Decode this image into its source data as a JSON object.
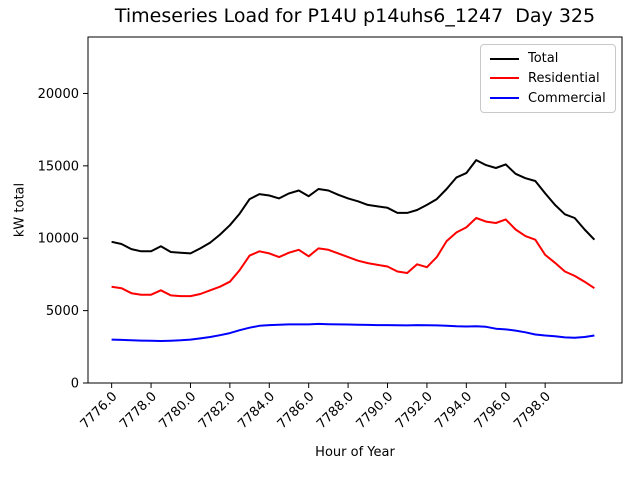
{
  "chart_data": {
    "type": "line",
    "title": "Timeseries Load for P14U p14uhs6_1247  Day 325",
    "xlabel": "Hour of Year",
    "ylabel": "kW total",
    "grid": false,
    "legend_position": "upper right",
    "xlim": [
      7774.8,
      7801.9
    ],
    "ylim": [
      0,
      23900
    ],
    "xticks": [
      7776,
      7778,
      7780,
      7782,
      7784,
      7786,
      7788,
      7790,
      7792,
      7794,
      7796,
      7798
    ],
    "xtick_labels": [
      "7776.0",
      "7778.0",
      "7780.0",
      "7782.0",
      "7784.0",
      "7786.0",
      "7788.0",
      "7790.0",
      "7792.0",
      "7794.0",
      "7796.0",
      "7798.0"
    ],
    "yticks": [
      0,
      5000,
      10000,
      15000,
      20000
    ],
    "ytick_labels": [
      "0",
      "5000",
      "10000",
      "15000",
      "20000"
    ],
    "x": [
      7776.0,
      7776.5,
      7777.0,
      7777.5,
      7778.0,
      7778.5,
      7779.0,
      7779.5,
      7780.0,
      7780.5,
      7781.0,
      7781.5,
      7782.0,
      7782.5,
      7783.0,
      7783.5,
      7784.0,
      7784.5,
      7785.0,
      7785.5,
      7786.0,
      7786.5,
      7787.0,
      7787.5,
      7788.0,
      7788.5,
      7789.0,
      7789.5,
      7790.0,
      7790.5,
      7791.0,
      7791.5,
      7792.0,
      7792.5,
      7793.0,
      7793.5,
      7794.0,
      7794.5,
      7795.0,
      7795.5,
      7796.0,
      7796.5,
      7797.0,
      7797.5,
      7798.0,
      7798.5,
      7799.0,
      7799.5,
      7800.0,
      7800.5
    ],
    "series": [
      {
        "name": "Total",
        "color": "#000000",
        "values": [
          9750,
          9600,
          9250,
          9100,
          9100,
          9450,
          9050,
          9000,
          8950,
          9300,
          9700,
          10250,
          10900,
          11700,
          12700,
          13050,
          12950,
          12750,
          13100,
          13300,
          12900,
          13400,
          13300,
          13000,
          12750,
          12550,
          12300,
          12200,
          12100,
          11750,
          11750,
          11950,
          12300,
          12700,
          13400,
          14200,
          14500,
          15400,
          15050,
          14850,
          15100,
          14450,
          14150,
          13950,
          13100,
          12300,
          11650,
          11400,
          10600,
          9900
        ]
      },
      {
        "name": "Residential",
        "color": "#ff0000",
        "values": [
          6650,
          6550,
          6200,
          6100,
          6100,
          6400,
          6050,
          6000,
          6000,
          6150,
          6400,
          6650,
          7000,
          7800,
          8800,
          9100,
          8950,
          8700,
          9000,
          9200,
          8750,
          9300,
          9200,
          8950,
          8700,
          8450,
          8280,
          8160,
          8050,
          7700,
          7600,
          8200,
          8000,
          8700,
          9800,
          10400,
          10750,
          11400,
          11150,
          11050,
          11300,
          10600,
          10150,
          9900,
          8850,
          8300,
          7700,
          7400,
          7000,
          6550
        ]
      },
      {
        "name": "Commercial",
        "color": "#0000ff",
        "values": [
          3000,
          2980,
          2950,
          2930,
          2920,
          2900,
          2920,
          2950,
          3000,
          3080,
          3180,
          3300,
          3450,
          3650,
          3820,
          3950,
          4000,
          4020,
          4050,
          4050,
          4050,
          4080,
          4060,
          4050,
          4040,
          4020,
          4010,
          4000,
          4000,
          3990,
          3980,
          4000,
          3990,
          3980,
          3950,
          3920,
          3900,
          3920,
          3880,
          3750,
          3700,
          3620,
          3500,
          3350,
          3280,
          3230,
          3150,
          3120,
          3180,
          3280
        ]
      }
    ]
  }
}
